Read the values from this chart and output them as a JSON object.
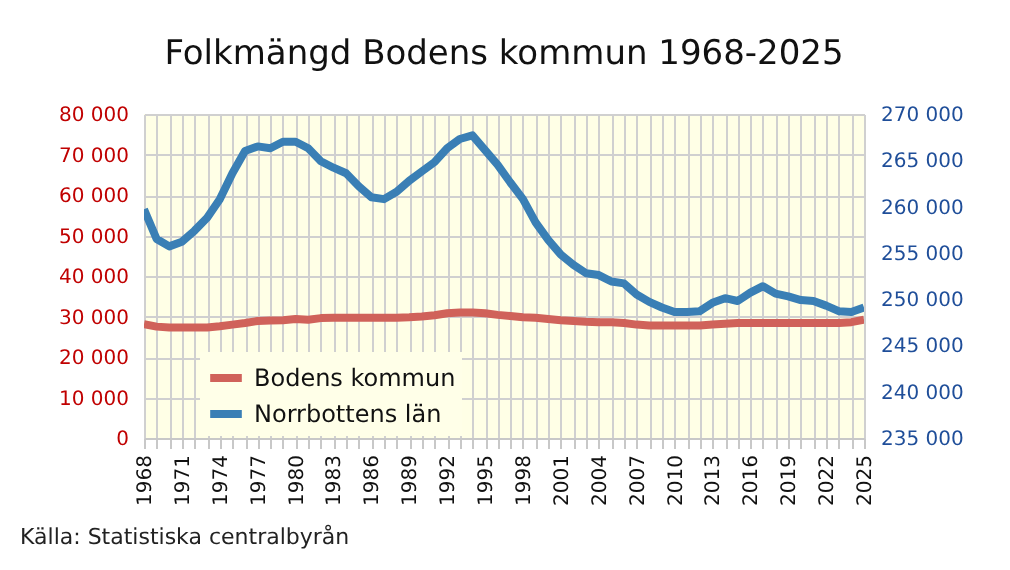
{
  "chart_data": {
    "type": "line",
    "title": "Folkmängd Bodens kommun 1968-2025",
    "annotations": [
      "Källa: Statistiska centralbyrån"
    ],
    "x": [
      1968,
      1969,
      1970,
      1971,
      1972,
      1973,
      1974,
      1975,
      1976,
      1977,
      1978,
      1979,
      1980,
      1981,
      1982,
      1983,
      1984,
      1985,
      1986,
      1987,
      1988,
      1989,
      1990,
      1991,
      1992,
      1993,
      1994,
      1995,
      1996,
      1997,
      1998,
      1999,
      2000,
      2001,
      2002,
      2003,
      2004,
      2005,
      2006,
      2007,
      2008,
      2009,
      2010,
      2011,
      2012,
      2013,
      2014,
      2015,
      2016,
      2017,
      2018,
      2019,
      2020,
      2021,
      2022,
      2023,
      2024,
      2025
    ],
    "series": [
      {
        "name": "Bodens kommun",
        "color": "#d0625a",
        "values": [
          28100,
          27500,
          27300,
          27300,
          27300,
          27300,
          27600,
          28000,
          28400,
          28900,
          29000,
          29100,
          29400,
          29200,
          29600,
          29700,
          29700,
          29700,
          29700,
          29700,
          29700,
          29800,
          30000,
          30300,
          30800,
          31000,
          31000,
          30800,
          30400,
          30100,
          29800,
          29700,
          29400,
          29100,
          28900,
          28700,
          28600,
          28600,
          28400,
          28000,
          27800,
          27800,
          27800,
          27800,
          27800,
          28000,
          28200,
          28400,
          28400,
          28400,
          28400,
          28400,
          28400,
          28400,
          28400,
          28400,
          28600,
          29200
        ]
      },
      {
        "name": "Norrbottens län",
        "color": "#3a7fb5",
        "axis": "y2",
        "values": [
          259700,
          256500,
          255700,
          256200,
          257400,
          258800,
          260800,
          263600,
          266000,
          266500,
          266300,
          267000,
          267000,
          266300,
          264900,
          264200,
          263600,
          262200,
          261000,
          260800,
          261600,
          262800,
          263800,
          264800,
          266300,
          267300,
          267700,
          266100,
          264500,
          262600,
          260800,
          258300,
          256400,
          254800,
          253700,
          252800,
          252600,
          251900,
          251700,
          250500,
          249700,
          249100,
          248600,
          248600,
          248700,
          249600,
          250100,
          249800,
          250700,
          251400,
          250600,
          250300,
          249900,
          249800,
          249300,
          248700,
          248600,
          249100
        ]
      }
    ],
    "xlim": [
      1968,
      2025
    ],
    "xticks": [
      1968,
      {
        "value": 1969,
        "label": null
      },
      {
        "value": 1970,
        "label": null
      },
      1971,
      {
        "value": 1972,
        "label": null
      },
      {
        "value": 1973,
        "label": null
      },
      1974,
      {
        "value": 1975,
        "label": null
      },
      {
        "value": 1976,
        "label": null
      },
      1977,
      {
        "value": 1978,
        "label": null
      },
      {
        "value": 1979,
        "label": null
      },
      1980,
      {
        "value": 1981,
        "label": null
      },
      {
        "value": 1982,
        "label": null
      },
      1983,
      {
        "value": 1984,
        "label": null
      },
      {
        "value": 1985,
        "label": null
      },
      1986,
      {
        "value": 1987,
        "label": null
      },
      {
        "value": 1988,
        "label": null
      },
      1989,
      {
        "value": 1990,
        "label": null
      },
      {
        "value": 1991,
        "label": null
      },
      1992,
      {
        "value": 1993,
        "label": null
      },
      {
        "value": 1994,
        "label": null
      },
      1995,
      {
        "value": 1996,
        "label": null
      },
      {
        "value": 1997,
        "label": null
      },
      1998,
      {
        "value": 1999,
        "label": null
      },
      {
        "value": 2000,
        "label": null
      },
      2001,
      {
        "value": 2002,
        "label": null
      },
      {
        "value": 2003,
        "label": null
      },
      2004,
      {
        "value": 2005,
        "label": null
      },
      {
        "value": 2006,
        "label": null
      },
      2007,
      {
        "value": 2008,
        "label": null
      },
      {
        "value": 2009,
        "label": null
      },
      2010,
      {
        "value": 2011,
        "label": null
      },
      {
        "value": 2012,
        "label": null
      },
      2013,
      {
        "value": 2014,
        "label": null
      },
      {
        "value": 2015,
        "label": null
      },
      2016,
      {
        "value": 2017,
        "label": null
      },
      {
        "value": 2018,
        "label": null
      },
      2019,
      {
        "value": 2020,
        "label": null
      },
      {
        "value": 2021,
        "label": null
      },
      2022,
      {
        "value": 2023,
        "label": null
      },
      {
        "value": 2024,
        "label": null
      },
      2025
    ],
    "ylim": [
      0,
      80000
    ],
    "yticks": [
      {
        "value": 0,
        "label": "0"
      },
      {
        "value": 10000,
        "label": "10 000"
      },
      {
        "value": 20000,
        "label": "20 000"
      },
      {
        "value": 30000,
        "label": "30 000"
      },
      {
        "value": 40000,
        "label": "40 000"
      },
      {
        "value": 50000,
        "label": "50 000"
      },
      {
        "value": 60000,
        "label": "60 000"
      },
      {
        "value": 70000,
        "label": "70 000"
      },
      {
        "value": 80000,
        "label": "80 000"
      }
    ],
    "y2lim": [
      235000,
      270000
    ],
    "y2ticks": [
      {
        "value": 235000,
        "label": "235 000"
      },
      {
        "value": 240000,
        "label": "240 000"
      },
      {
        "value": 245000,
        "label": "245 000"
      },
      {
        "value": 250000,
        "label": "250 000"
      },
      {
        "value": 255000,
        "label": "255 000"
      },
      {
        "value": 260000,
        "label": "260 000"
      },
      {
        "value": 265000,
        "label": "265 000"
      },
      {
        "value": 270000,
        "label": "270 000"
      }
    ],
    "grid": true,
    "legend": "bottom left"
  }
}
